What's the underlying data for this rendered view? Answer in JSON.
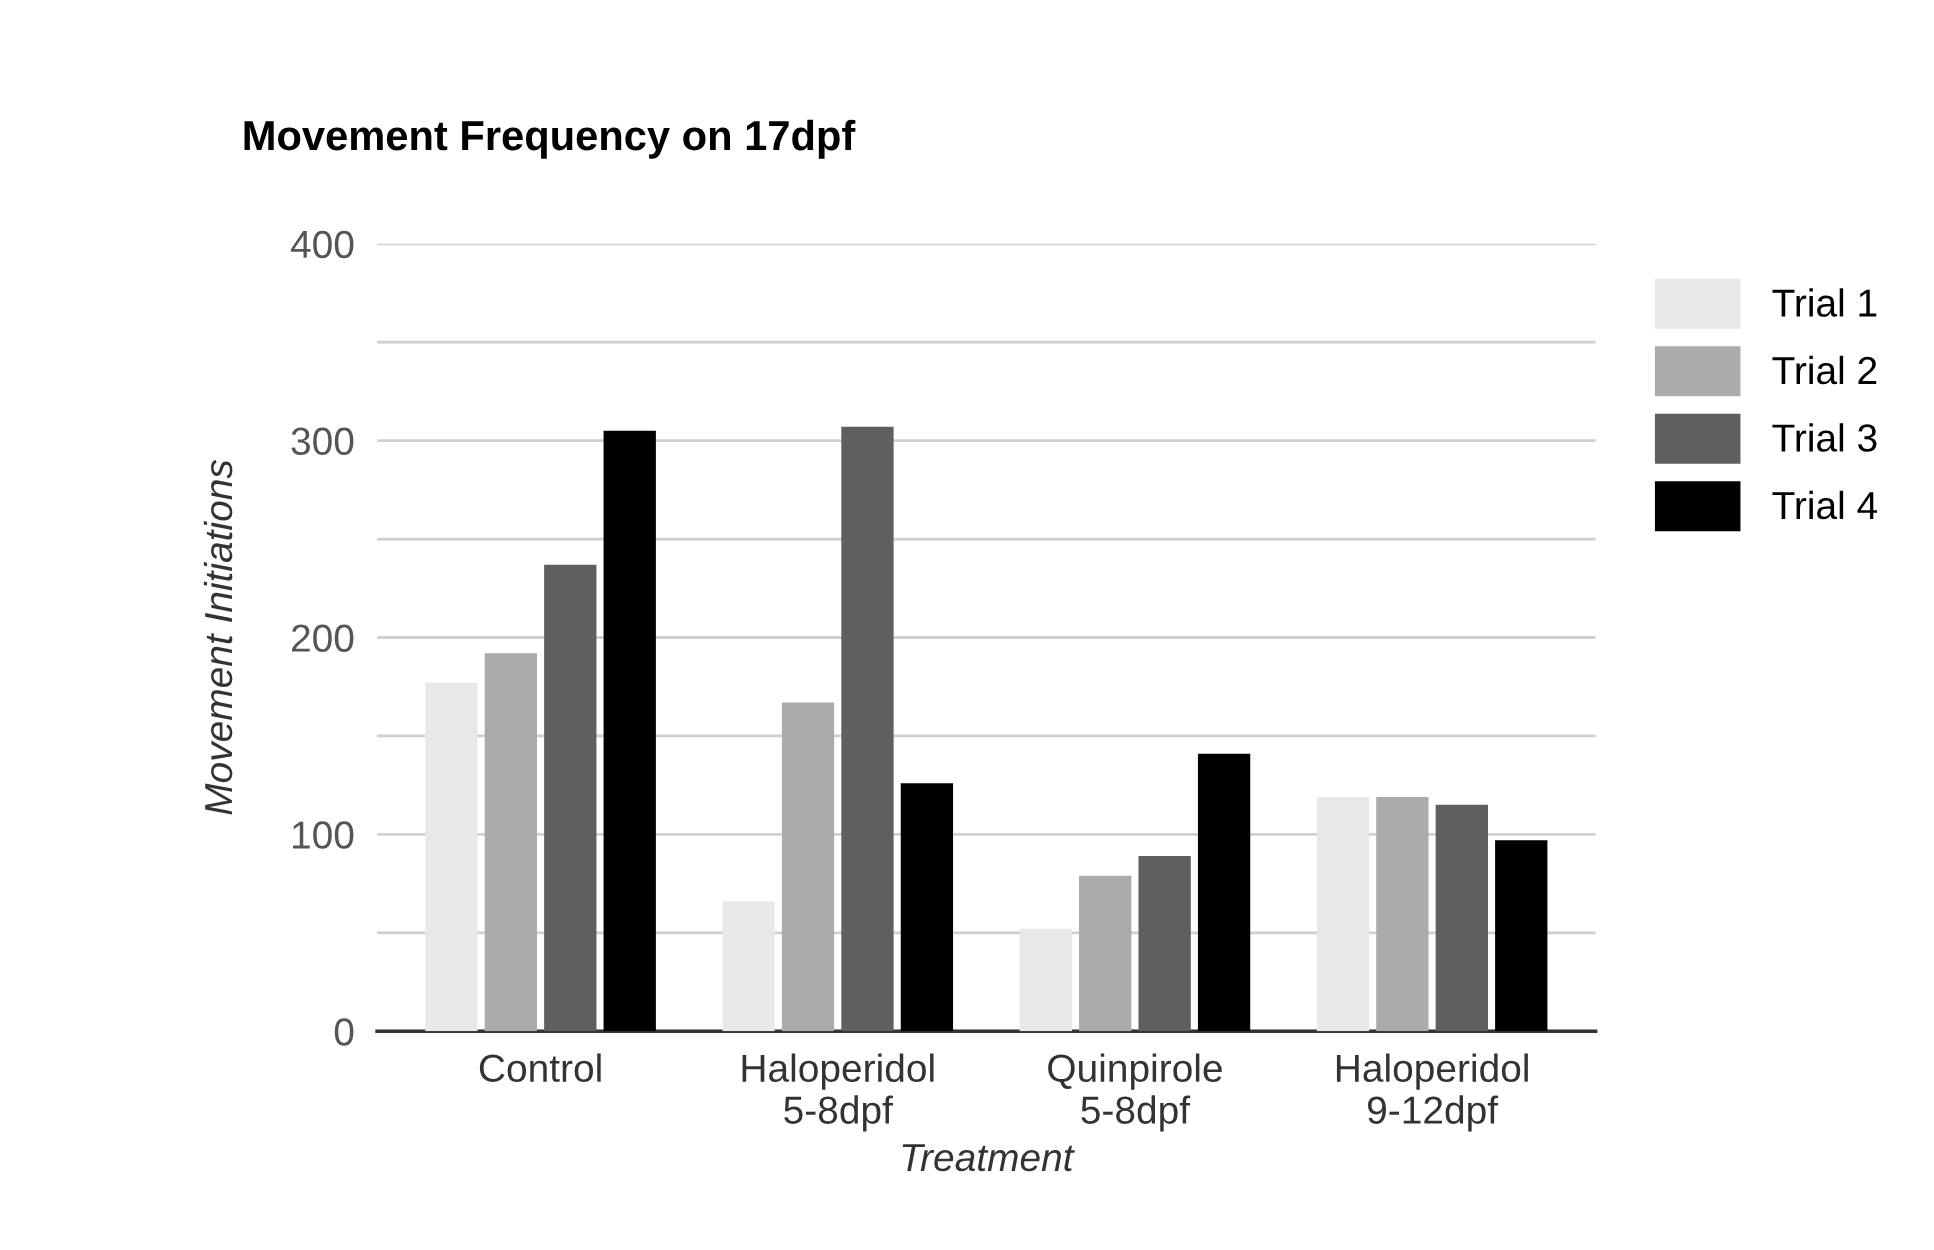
{
  "chart_data": {
    "type": "bar",
    "title": "Movement Frequency on 17dpf",
    "xlabel": "Treatment",
    "ylabel": "Movement Initiations",
    "categories": [
      "Control",
      "Haloperidol\n5-8dpf",
      "Quinpirole\n5-8dpf",
      "Haloperidol\n9-12dpf"
    ],
    "series": [
      {
        "name": "Trial 1",
        "color": "#e8e8e8",
        "values": [
          177,
          66,
          52,
          119
        ]
      },
      {
        "name": "Trial 2",
        "color": "#ababab",
        "values": [
          192,
          167,
          79,
          119
        ]
      },
      {
        "name": "Trial 3",
        "color": "#5f5f5f",
        "values": [
          237,
          307,
          89,
          115
        ]
      },
      {
        "name": "Trial 4",
        "color": "#000000",
        "values": [
          305,
          126,
          141,
          97
        ]
      }
    ],
    "ylim": [
      0,
      400
    ],
    "yticks": [
      0,
      {
        "value": 50,
        "label": null
      },
      100,
      {
        "value": 150,
        "label": null
      },
      200,
      {
        "value": 250,
        "label": null
      },
      300,
      {
        "value": 350,
        "label": null
      },
      400
    ],
    "grid": "y",
    "legend": "right"
  }
}
